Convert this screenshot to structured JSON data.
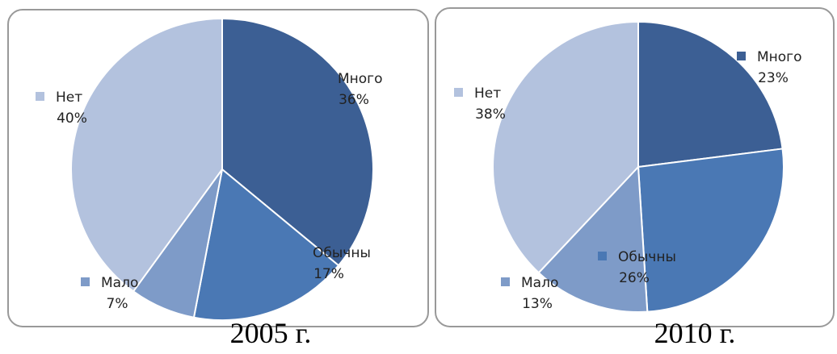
{
  "chart_data": [
    {
      "type": "pie",
      "title": "2005 г.",
      "categories": [
        "Много",
        "Обычны",
        "Мало",
        "Нет"
      ],
      "values": [
        36,
        17,
        7,
        40
      ],
      "value_labels": [
        "36%",
        "17%",
        "7%",
        "40%"
      ],
      "colors": [
        "#3c5f94",
        "#4a78b4",
        "#7e9bc8",
        "#b3c2de"
      ]
    },
    {
      "type": "pie",
      "title": "2010 г.",
      "categories": [
        "Много",
        "Обычны",
        "Мало",
        "Нет"
      ],
      "values": [
        23,
        26,
        13,
        38
      ],
      "value_labels": [
        "23%",
        "26%",
        "13%",
        "38%"
      ],
      "colors": [
        "#3c5f94",
        "#4a78b4",
        "#7e9bc8",
        "#b3c2de"
      ]
    }
  ]
}
